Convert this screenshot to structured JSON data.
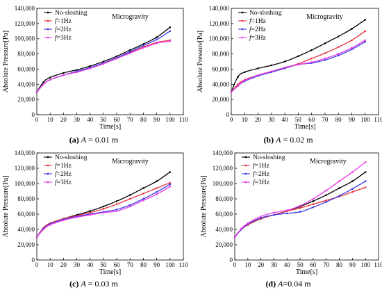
{
  "figure": {
    "legend_labels": {
      "no_sloshing": "No-sloshing",
      "f1": "f=1Hz",
      "f2": "f=2Hz",
      "f3": "f=3Hz"
    },
    "series_colors": {
      "no_sloshing": "#000000",
      "f1": "#e8323c",
      "f2": "#3c3ce8",
      "f3": "#e83ce8"
    }
  },
  "chart_data": [
    {
      "type": "line",
      "panel": "a",
      "caption_label": "(a)",
      "caption_var": "A",
      "caption_value": " = 0.01 m",
      "annotation": "Microgravity",
      "xlabel": "Time[s]",
      "ylabel": "Absolute Pressure[Pa]",
      "xlim": [
        0,
        110
      ],
      "ylim": [
        0,
        140000
      ],
      "xticks": [
        0,
        10,
        20,
        30,
        40,
        50,
        60,
        70,
        80,
        90,
        100,
        110
      ],
      "yticks": [
        0,
        20000,
        40000,
        60000,
        80000,
        100000,
        120000,
        140000
      ],
      "ytick_labels": [
        "0",
        "20,000",
        "40,000",
        "60,000",
        "80,000",
        "100,000",
        "120,000",
        "140,000"
      ],
      "x": [
        0,
        5,
        10,
        20,
        30,
        40,
        50,
        60,
        70,
        80,
        90,
        100
      ],
      "series": [
        {
          "key": "no_sloshing",
          "name": "No-sloshing",
          "values": [
            30000,
            43000,
            49000,
            55000,
            59000,
            64000,
            70000,
            77000,
            85000,
            93000,
            102000,
            115000
          ]
        },
        {
          "key": "f1",
          "name": "f=1Hz",
          "values": [
            30000,
            40000,
            46000,
            52000,
            57000,
            62000,
            68000,
            75000,
            82000,
            89000,
            95000,
            98000
          ]
        },
        {
          "key": "f2",
          "name": "f=2Hz",
          "values": [
            30000,
            40000,
            46000,
            52000,
            57000,
            62000,
            68000,
            75000,
            83000,
            91000,
            99000,
            110000
          ]
        },
        {
          "key": "f3",
          "name": "f=3Hz",
          "values": [
            30000,
            40000,
            46000,
            52000,
            56000,
            61000,
            67000,
            74000,
            81000,
            88000,
            94000,
            97000
          ]
        }
      ]
    },
    {
      "type": "line",
      "panel": "b",
      "caption_label": "(b)",
      "caption_var": "A",
      "caption_value": " = 0.02 m",
      "annotation": "Microgravity",
      "xlabel": "Time[s]",
      "ylabel": "Absolute Pressure[Pa]",
      "xlim": [
        0,
        110
      ],
      "ylim": [
        0,
        140000
      ],
      "xticks": [
        0,
        10,
        20,
        30,
        40,
        50,
        60,
        70,
        80,
        90,
        100,
        110
      ],
      "yticks": [
        0,
        20000,
        40000,
        60000,
        80000,
        100000,
        120000,
        140000
      ],
      "ytick_labels": [
        "0",
        "20,000",
        "40,000",
        "60,000",
        "80,000",
        "100,000",
        "120,000",
        "140,000"
      ],
      "x": [
        0,
        5,
        10,
        20,
        30,
        40,
        50,
        60,
        70,
        80,
        90,
        100
      ],
      "series": [
        {
          "key": "no_sloshing",
          "name": "No-sloshing",
          "values": [
            30000,
            50000,
            56000,
            61000,
            65000,
            70000,
            77000,
            85000,
            94000,
            103000,
            113000,
            125000
          ]
        },
        {
          "key": "f1",
          "name": "f=1Hz",
          "values": [
            30000,
            40000,
            46000,
            52000,
            57000,
            62000,
            67000,
            74000,
            81000,
            89000,
            98000,
            110000
          ]
        },
        {
          "key": "f2",
          "name": "f=2Hz",
          "values": [
            30000,
            38000,
            44000,
            51000,
            56000,
            61000,
            66000,
            68000,
            72000,
            78000,
            86000,
            96000
          ]
        },
        {
          "key": "f3",
          "name": "f=3Hz",
          "values": [
            30000,
            38000,
            45000,
            52000,
            57000,
            62000,
            66000,
            69000,
            74000,
            80000,
            88000,
            98000
          ]
        }
      ]
    },
    {
      "type": "line",
      "panel": "c",
      "caption_label": "(c)",
      "caption_var": "A",
      "caption_value": " = 0.03 m",
      "annotation": "Microgravity",
      "xlabel": "Time[s]",
      "ylabel": "Absolute Pressure[Pa]",
      "xlim": [
        0,
        110
      ],
      "ylim": [
        0,
        140000
      ],
      "xticks": [
        0,
        10,
        20,
        30,
        40,
        50,
        60,
        70,
        80,
        90,
        100,
        110
      ],
      "yticks": [
        0,
        20000,
        40000,
        60000,
        80000,
        100000,
        120000,
        140000
      ],
      "ytick_labels": [
        "0",
        "20,000",
        "40,000",
        "60,000",
        "80,000",
        "100,000",
        "120,000",
        "140,000"
      ],
      "x": [
        0,
        5,
        10,
        20,
        30,
        40,
        50,
        60,
        70,
        80,
        90,
        100
      ],
      "series": [
        {
          "key": "no_sloshing",
          "name": "No-sloshing",
          "values": [
            30000,
            42000,
            48000,
            54000,
            59000,
            64000,
            70000,
            77000,
            85000,
            94000,
            103000,
            115000
          ]
        },
        {
          "key": "f1",
          "name": "f=1Hz",
          "values": [
            30000,
            42000,
            48000,
            54000,
            58000,
            62000,
            67000,
            73000,
            80000,
            87000,
            94000,
            101000
          ]
        },
        {
          "key": "f2",
          "name": "f=2Hz",
          "values": [
            30000,
            41000,
            47000,
            53000,
            57000,
            60000,
            63000,
            66000,
            72000,
            80000,
            89000,
            99000
          ]
        },
        {
          "key": "f3",
          "name": "f=3Hz",
          "values": [
            30000,
            40000,
            46000,
            52000,
            56000,
            59000,
            62000,
            64000,
            70000,
            78000,
            86000,
            96000
          ]
        }
      ]
    },
    {
      "type": "line",
      "panel": "d",
      "caption_label": "(d)",
      "caption_var": "A",
      "caption_value": "=0.04 m",
      "annotation": "Microgravity",
      "xlabel": "Time[s]",
      "ylabel": "Absolute Pressure[Pa]",
      "xlim": [
        0,
        110
      ],
      "ylim": [
        0,
        140000
      ],
      "xticks": [
        0,
        10,
        20,
        30,
        40,
        50,
        60,
        70,
        80,
        90,
        100,
        110
      ],
      "yticks": [
        0,
        20000,
        40000,
        60000,
        80000,
        100000,
        120000,
        140000
      ],
      "ytick_labels": [
        "0",
        "20,000",
        "40,000",
        "60,000",
        "80,000",
        "100,000",
        "120,000",
        "140,000"
      ],
      "x": [
        0,
        5,
        10,
        20,
        30,
        40,
        50,
        60,
        70,
        80,
        90,
        100
      ],
      "series": [
        {
          "key": "no_sloshing",
          "name": "No-sloshing",
          "values": [
            30000,
            40000,
            46000,
            54000,
            59000,
            64000,
            70000,
            77000,
            85000,
            94000,
            103000,
            115000
          ]
        },
        {
          "key": "f1",
          "name": "f=1Hz",
          "values": [
            30000,
            40000,
            46000,
            54000,
            59000,
            64000,
            68000,
            73000,
            78000,
            83000,
            89000,
            95000
          ]
        },
        {
          "key": "f2",
          "name": "f=2Hz",
          "values": [
            30000,
            40000,
            47000,
            55000,
            59000,
            61000,
            63000,
            69000,
            76000,
            84000,
            93000,
            103000
          ]
        },
        {
          "key": "f3",
          "name": "f=3Hz",
          "values": [
            30000,
            41000,
            48000,
            57000,
            62000,
            65000,
            71000,
            80000,
            91000,
            103000,
            115000,
            128000
          ]
        }
      ]
    }
  ]
}
